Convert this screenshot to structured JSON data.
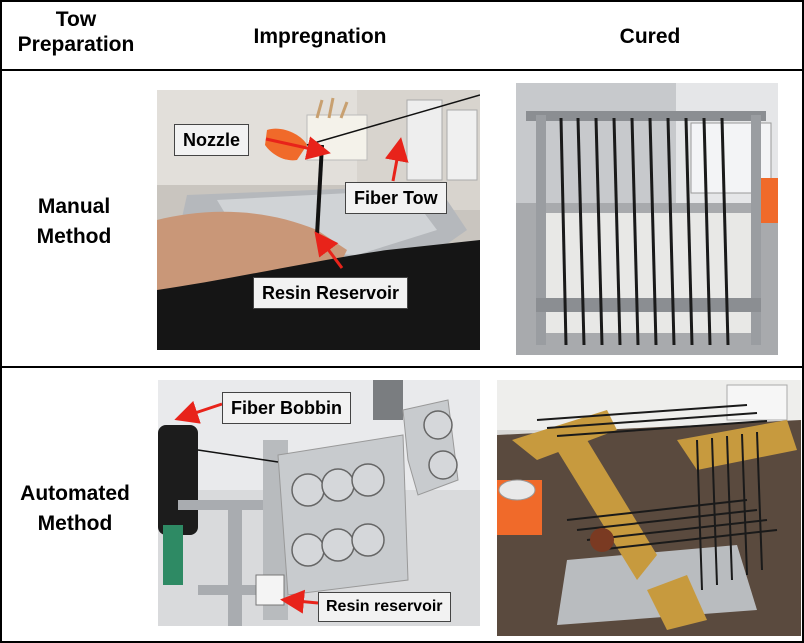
{
  "headers": {
    "col1": "Tow\nPreparation",
    "col1_line1": "Tow",
    "col1_line2": "Preparation",
    "col2": "Impregnation",
    "col3": "Cured"
  },
  "rows": {
    "manual": {
      "line1": "Manual",
      "line2": "Method"
    },
    "automated": {
      "line1": "Automated",
      "line2": "Method"
    }
  },
  "callouts": {
    "nozzle": "Nozzle",
    "fiber_tow": "Fiber Tow",
    "resin_reservoir_manual": "Resin Reservoir",
    "fiber_bobbin": "Fiber Bobbin",
    "resin_reservoir_auto": "Resin reservoir"
  },
  "colors": {
    "arrow": "#e8231a",
    "border": "#000000"
  }
}
